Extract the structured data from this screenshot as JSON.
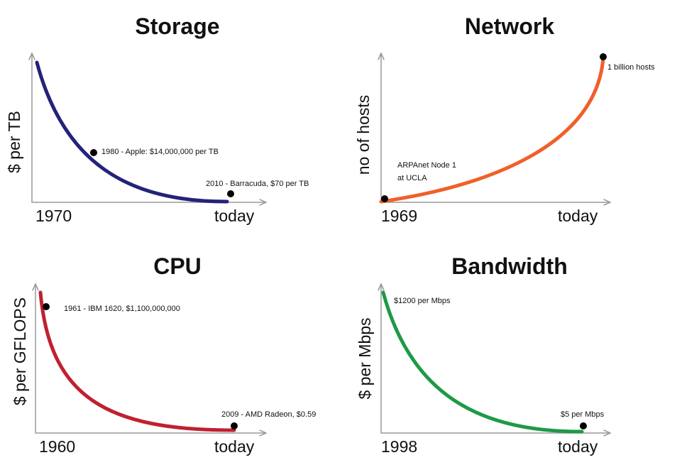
{
  "panels": [
    {
      "title": "Storage",
      "y_label": "$ per TB",
      "x_start": "1970",
      "x_end": "today",
      "notes": [
        "1980 - Apple: $14,000,000 per TB",
        "2010 - Barracuda, $70 per TB"
      ]
    },
    {
      "title": "Network",
      "y_label": "no of hosts",
      "x_start": "1969",
      "x_end": "today",
      "notes": [
        "1 billion hosts",
        "ARPAnet Node 1",
        "at UCLA"
      ]
    },
    {
      "title": "CPU",
      "y_label": "$ per GFLOPS",
      "x_start": "1960",
      "x_end": "today",
      "notes": [
        "1961 - IBM 1620, $1,100,000,000",
        "2009  - AMD Radeon, $0.59"
      ]
    },
    {
      "title": "Bandwidth",
      "y_label": "$ per Mbps",
      "x_start": "1998",
      "x_end": "today",
      "notes": [
        "$1200 per Mbps",
        "$5 per Mbps"
      ]
    }
  ]
}
